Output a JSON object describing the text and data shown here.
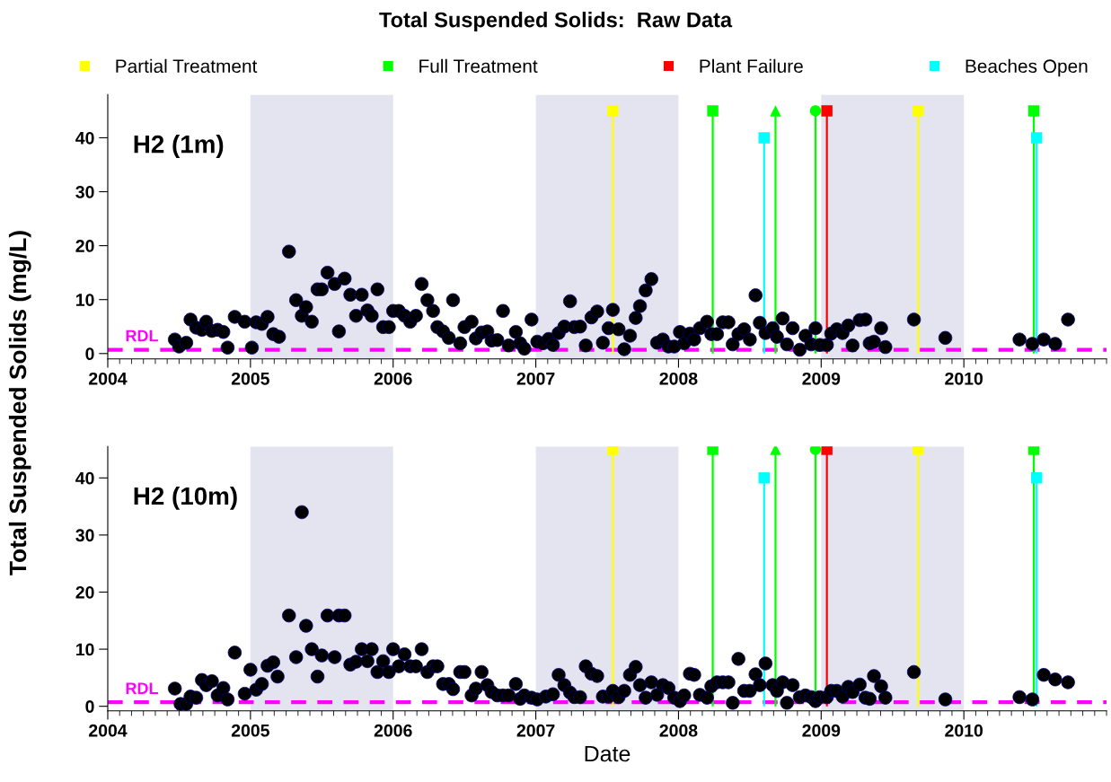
{
  "chart_data": [
    {
      "type": "scatter",
      "title": "Total Suspended Solids:  Raw Data",
      "ylabel": "Total Suspended Solids (mg/L)",
      "annotations": [
        "H2 (1m)"
      ],
      "legend": "top",
      "grid": false,
      "marker": "circle",
      "xlim": [
        2004,
        2011
      ],
      "xticks": [
        2004,
        2005,
        2006,
        2007,
        2008,
        2009,
        2010
      ],
      "ylim": [
        -1,
        48
      ],
      "yticks": [
        0,
        10,
        20,
        30,
        40
      ],
      "bands": [
        {
          "axis": "x",
          "from": 2005,
          "to": 2006,
          "color": "#e4e4f0"
        },
        {
          "axis": "x",
          "from": 2007,
          "to": 2008,
          "color": "#e4e4f0"
        },
        {
          "axis": "x",
          "from": 2009,
          "to": 2010,
          "color": "#e4e4f0"
        }
      ],
      "ref_lines": [
        {
          "axis": "y",
          "value": 0.7,
          "label": "RDL",
          "color": "#ff00ff",
          "line_style": "dashed"
        }
      ],
      "series": [
        {
          "color": "#000000",
          "x": [
            2004.47,
            2004.5,
            2004.55,
            2004.58,
            2004.62,
            2004.66,
            2004.69,
            2004.73,
            2004.77,
            2004.81,
            2004.84,
            2004.89,
            2004.96,
            2005.01,
            2005.04,
            2005.08,
            2005.12,
            2005.16,
            2005.2,
            2005.27,
            2005.32,
            2005.36,
            2005.39,
            2005.43,
            2005.47,
            2005.5,
            2005.54,
            2005.59,
            2005.62,
            2005.66,
            2005.7,
            2005.74,
            2005.78,
            2005.82,
            2005.85,
            2005.89,
            2005.93,
            2005.97,
            2006.0,
            2006.04,
            2006.08,
            2006.12,
            2006.16,
            2006.2,
            2006.24,
            2006.28,
            2006.31,
            2006.35,
            2006.39,
            2006.42,
            2006.47,
            2006.5,
            2006.55,
            2006.58,
            2006.62,
            2006.66,
            2006.69,
            2006.73,
            2006.77,
            2006.81,
            2006.86,
            2006.89,
            2006.92,
            2006.97,
            2007.01,
            2007.05,
            2007.09,
            2007.12,
            2007.16,
            2007.2,
            2007.24,
            2007.27,
            2007.31,
            2007.35,
            2007.39,
            2007.43,
            2007.47,
            2007.51,
            2007.54,
            2007.58,
            2007.62,
            2007.66,
            2007.7,
            2007.73,
            2007.77,
            2007.81,
            2007.85,
            2007.89,
            2007.93,
            2007.97,
            2008.01,
            2008.04,
            2008.08,
            2008.11,
            2008.15,
            2008.2,
            2008.23,
            2008.27,
            2008.31,
            2008.35,
            2008.38,
            2008.42,
            2008.46,
            2008.5,
            2008.54,
            2008.57,
            2008.61,
            2008.66,
            2008.69,
            2008.73,
            2008.76,
            2008.8,
            2008.85,
            2008.89,
            2008.93,
            2008.96,
            2008.99,
            2009.04,
            2009.07,
            2009.11,
            2009.15,
            2009.19,
            2009.22,
            2009.27,
            2009.31,
            2009.34,
            2009.37,
            2009.42,
            2009.45,
            2009.65,
            2009.87,
            2010.39,
            2010.48,
            2010.56,
            2010.64,
            2010.73
          ],
          "values": [
            2.6,
            1.3,
            2.0,
            6.3,
            4.8,
            4.4,
            5.9,
            4.2,
            4.4,
            4.0,
            1.1,
            6.8,
            5.9,
            1.1,
            5.8,
            5.5,
            6.8,
            3.6,
            3.1,
            18.9,
            9.9,
            7.0,
            8.6,
            5.9,
            11.9,
            11.9,
            15.0,
            12.9,
            4.1,
            13.9,
            10.9,
            7.0,
            10.9,
            8.0,
            7.0,
            11.9,
            4.9,
            4.9,
            7.9,
            7.9,
            7.0,
            5.9,
            7.0,
            12.9,
            9.9,
            7.9,
            4.9,
            4.1,
            2.9,
            9.9,
            1.9,
            4.9,
            5.9,
            2.8,
            3.9,
            4.1,
            2.4,
            2.5,
            7.9,
            1.5,
            4.0,
            1.9,
            0.9,
            6.3,
            2.2,
            1.9,
            2.7,
            1.6,
            3.8,
            5.0,
            9.7,
            4.9,
            5.0,
            1.5,
            6.7,
            7.8,
            2.0,
            4.7,
            8.1,
            4.5,
            0.8,
            3.3,
            6.6,
            8.8,
            11.7,
            13.8,
            2.0,
            2.6,
            1.3,
            1.3,
            4.0,
            1.9,
            3.7,
            2.6,
            4.7,
            5.9,
            3.6,
            3.6,
            5.8,
            5.8,
            1.7,
            3.6,
            4.5,
            2.6,
            10.8,
            5.7,
            3.8,
            4.7,
            3.1,
            6.5,
            1.7,
            4.7,
            0.7,
            3.3,
            1.7,
            4.7,
            1.6,
            1.6,
            3.7,
            4.5,
            3.8,
            5.2,
            1.5,
            6.2,
            6.3,
            1.9,
            2.2,
            4.7,
            1.2,
            6.3,
            2.9,
            2.6,
            1.8,
            2.6,
            1.8,
            6.3
          ]
        },
        {
          "type": "lollipop",
          "name": "Partial Treatment",
          "color": "#ffff00",
          "marker": "square",
          "x": [
            2007.54,
            2009.68
          ],
          "values": [
            45,
            45
          ]
        },
        {
          "type": "lollipop",
          "name": "Full Treatment",
          "color": "#00ff00",
          "marker": "square",
          "x": [
            2008.24,
            2010.49
          ],
          "values": [
            45,
            45
          ]
        },
        {
          "type": "lollipop",
          "color": "#00ff00",
          "marker": "triangle",
          "x": [
            2008.68
          ],
          "values": [
            45
          ]
        },
        {
          "type": "lollipop",
          "color": "#00ff00",
          "marker": "circle",
          "x": [
            2008.96
          ],
          "values": [
            45
          ]
        },
        {
          "type": "lollipop",
          "name": "Plant Failure",
          "color": "#ff0000",
          "marker": "square",
          "x": [
            2009.04
          ],
          "values": [
            45
          ]
        },
        {
          "type": "lollipop",
          "name": "Beaches Open",
          "color": "#00ffff",
          "marker": "square",
          "x": [
            2008.6,
            2010.51
          ],
          "values": [
            40,
            40
          ]
        }
      ]
    },
    {
      "type": "scatter",
      "xlabel": "Date",
      "annotations": [
        "H2 (10m)"
      ],
      "grid": false,
      "marker": "circle",
      "xlim": [
        2004,
        2011
      ],
      "xticks": [
        2004,
        2005,
        2006,
        2007,
        2008,
        2009,
        2010
      ],
      "ylim": [
        -0.8,
        45.5
      ],
      "yticks": [
        0,
        10,
        20,
        30,
        40
      ],
      "bands": [
        {
          "axis": "x",
          "from": 2005,
          "to": 2006,
          "color": "#e4e4f0"
        },
        {
          "axis": "x",
          "from": 2007,
          "to": 2008,
          "color": "#e4e4f0"
        },
        {
          "axis": "x",
          "from": 2009,
          "to": 2010,
          "color": "#e4e4f0"
        }
      ],
      "ref_lines": [
        {
          "axis": "y",
          "value": 0.7,
          "label": "RDL",
          "color": "#ff00ff",
          "line_style": "dashed"
        }
      ],
      "series": [
        {
          "color": "#000000",
          "x": [
            2004.47,
            2004.51,
            2004.55,
            2004.58,
            2004.62,
            2004.66,
            2004.69,
            2004.73,
            2004.77,
            2004.81,
            2004.84,
            2004.89,
            2004.96,
            2005.0,
            2005.04,
            2005.08,
            2005.12,
            2005.16,
            2005.19,
            2005.27,
            2005.32,
            2005.36,
            2005.39,
            2005.43,
            2005.47,
            2005.5,
            2005.54,
            2005.59,
            2005.62,
            2005.66,
            2005.7,
            2005.74,
            2005.78,
            2005.82,
            2005.85,
            2005.89,
            2005.93,
            2005.97,
            2006.0,
            2006.04,
            2006.08,
            2006.12,
            2006.16,
            2006.2,
            2006.24,
            2006.28,
            2006.31,
            2006.35,
            2006.39,
            2006.42,
            2006.47,
            2006.5,
            2006.55,
            2006.58,
            2006.62,
            2006.66,
            2006.69,
            2006.73,
            2006.77,
            2006.81,
            2006.86,
            2006.89,
            2006.92,
            2006.97,
            2007.01,
            2007.07,
            2007.12,
            2007.16,
            2007.2,
            2007.24,
            2007.27,
            2007.31,
            2007.35,
            2007.39,
            2007.43,
            2007.47,
            2007.51,
            2007.54,
            2007.58,
            2007.62,
            2007.66,
            2007.7,
            2007.73,
            2007.77,
            2007.81,
            2007.85,
            2007.89,
            2007.93,
            2007.97,
            2008.01,
            2008.04,
            2008.08,
            2008.11,
            2008.15,
            2008.2,
            2008.23,
            2008.27,
            2008.31,
            2008.35,
            2008.38,
            2008.42,
            2008.46,
            2008.5,
            2008.54,
            2008.57,
            2008.61,
            2008.66,
            2008.69,
            2008.73,
            2008.76,
            2008.8,
            2008.85,
            2008.89,
            2008.93,
            2008.96,
            2008.99,
            2009.04,
            2009.07,
            2009.11,
            2009.15,
            2009.19,
            2009.22,
            2009.27,
            2009.31,
            2009.34,
            2009.37,
            2009.42,
            2009.45,
            2009.65,
            2009.87,
            2010.39,
            2010.48,
            2010.56,
            2010.64,
            2010.73
          ],
          "values": [
            3.1,
            0.4,
            0.4,
            1.7,
            1.5,
            4.6,
            3.7,
            4.4,
            1.9,
            3.2,
            1.2,
            9.4,
            2.2,
            6.4,
            2.9,
            3.9,
            7.1,
            7.7,
            5.2,
            15.9,
            8.6,
            34.0,
            14.1,
            10.0,
            5.2,
            8.9,
            15.9,
            8.6,
            15.9,
            15.9,
            7.3,
            7.8,
            10.0,
            7.9,
            10.0,
            6.0,
            7.9,
            6.0,
            10.0,
            7.0,
            9.1,
            7.0,
            7.0,
            10.0,
            6.0,
            7.0,
            7.0,
            3.9,
            3.9,
            3.0,
            6.0,
            6.0,
            1.9,
            3.1,
            6.0,
            3.7,
            2.5,
            1.9,
            1.9,
            1.9,
            3.9,
            1.3,
            1.9,
            1.5,
            1.2,
            1.7,
            2.1,
            5.5,
            3.7,
            2.4,
            1.6,
            1.6,
            7.0,
            5.7,
            5.3,
            1.7,
            1.7,
            2.7,
            1.6,
            2.7,
            5.5,
            6.9,
            3.7,
            1.5,
            4.2,
            2.0,
            3.7,
            3.2,
            1.5,
            0.9,
            1.9,
            5.7,
            5.5,
            2.0,
            1.5,
            3.5,
            4.2,
            4.2,
            4.2,
            0.6,
            8.3,
            2.7,
            2.7,
            5.6,
            3.7,
            7.5,
            3.7,
            2.7,
            4.2,
            0.6,
            3.7,
            1.6,
            1.9,
            1.6,
            0.9,
            1.6,
            1.6,
            2.7,
            2.7,
            1.7,
            3.4,
            2.5,
            3.8,
            1.5,
            1.3,
            5.3,
            3.5,
            1.5,
            6.0,
            1.2,
            1.6,
            1.2,
            5.5,
            4.7,
            4.2
          ]
        },
        {
          "type": "lollipop",
          "color": "#ffff00",
          "marker": "square",
          "x": [
            2007.54,
            2009.68
          ],
          "values": [
            45,
            45
          ]
        },
        {
          "type": "lollipop",
          "color": "#00ff00",
          "marker": "square",
          "x": [
            2008.24,
            2010.49
          ],
          "values": [
            45,
            45
          ]
        },
        {
          "type": "lollipop",
          "color": "#00ff00",
          "marker": "triangle",
          "x": [
            2008.68
          ],
          "values": [
            45
          ]
        },
        {
          "type": "lollipop",
          "color": "#00ff00",
          "marker": "circle",
          "x": [
            2008.96
          ],
          "values": [
            45
          ]
        },
        {
          "type": "lollipop",
          "color": "#ff0000",
          "marker": "square",
          "x": [
            2009.04
          ],
          "values": [
            45
          ]
        },
        {
          "type": "lollipop",
          "color": "#00ffff",
          "marker": "square",
          "x": [
            2008.6,
            2010.51
          ],
          "values": [
            40,
            40
          ]
        }
      ]
    }
  ]
}
